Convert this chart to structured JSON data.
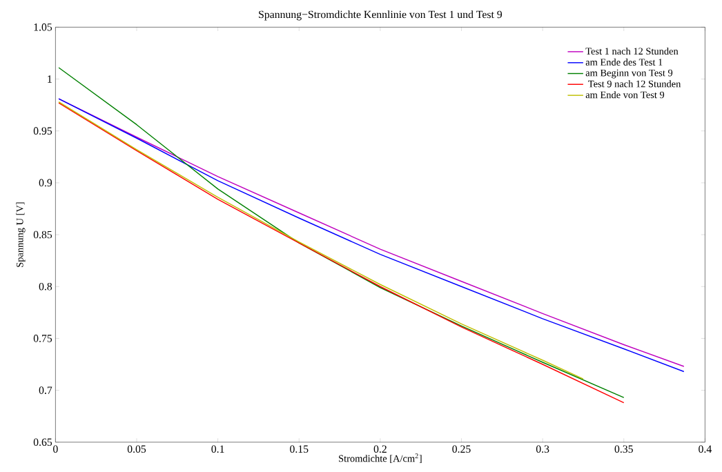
{
  "chart_data": {
    "type": "line",
    "title": "Spannung−Stromdichte Kennlinie von Test 1 und Test 9",
    "xlabel": "Stromdichte [A/cm$^{2}$]",
    "ylabel": "Spannung U [V]",
    "xlim": [
      0,
      0.4
    ],
    "ylim": [
      0.65,
      1.05
    ],
    "xticks": [
      0,
      0.05,
      0.1,
      0.15,
      0.2,
      0.25,
      0.3,
      0.35,
      0.4
    ],
    "yticks": [
      0.65,
      0.7,
      0.75,
      0.8,
      0.85,
      0.9,
      0.95,
      1,
      1.05
    ],
    "grid": false,
    "legend": "top right",
    "marker": "none",
    "line_style": "solid",
    "series": [
      {
        "name": "Test 1 nach 12 Stunden",
        "color": "#bf00bf",
        "x": [
          0.002,
          0.05,
          0.1,
          0.15,
          0.2,
          0.25,
          0.3,
          0.35,
          0.387
        ],
        "values": [
          0.981,
          0.944,
          0.906,
          0.871,
          0.836,
          0.805,
          0.774,
          0.744,
          0.723
        ]
      },
      {
        "name": "am Ende des Test 1",
        "color": "#0000ff",
        "x": [
          0.002,
          0.05,
          0.1,
          0.15,
          0.2,
          0.25,
          0.3,
          0.35,
          0.387
        ],
        "values": [
          0.981,
          0.943,
          0.902,
          0.866,
          0.831,
          0.8,
          0.769,
          0.74,
          0.718
        ]
      },
      {
        "name": "am Beginn von Test 9",
        "color": "#008000",
        "x": [
          0.002,
          0.05,
          0.1,
          0.15,
          0.2,
          0.25,
          0.3,
          0.35
        ],
        "values": [
          1.011,
          0.956,
          0.894,
          0.842,
          0.799,
          0.762,
          0.727,
          0.693
        ]
      },
      {
        "name": " Test 9 nach 12 Stunden",
        "color": "#ff0000",
        "x": [
          0.002,
          0.05,
          0.1,
          0.15,
          0.2,
          0.25,
          0.3,
          0.35
        ],
        "values": [
          0.977,
          0.931,
          0.884,
          0.842,
          0.8,
          0.761,
          0.725,
          0.688
        ]
      },
      {
        "name": "am Ende von Test 9",
        "color": "#bfbf00",
        "x": [
          0.002,
          0.05,
          0.1,
          0.15,
          0.2,
          0.25,
          0.3,
          0.325
        ],
        "values": [
          0.978,
          0.932,
          0.886,
          0.843,
          0.802,
          0.764,
          0.729,
          0.711
        ]
      }
    ]
  }
}
